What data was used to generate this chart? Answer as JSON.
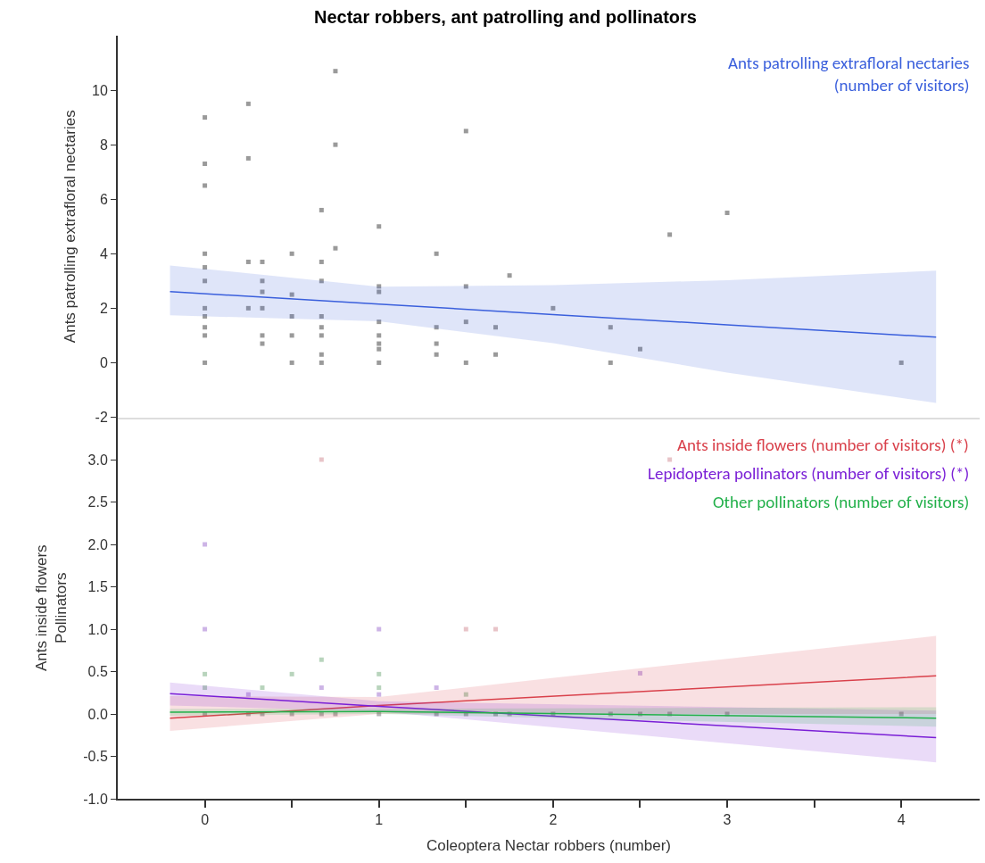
{
  "chart_data": [
    {
      "type": "scatter",
      "title": "Nectar robbers, ant patrolling and pollinators",
      "ylabel": "Ants patrolling extrafloral nectaries",
      "xlim": [
        -0.5,
        4.45
      ],
      "xticks": [
        0,
        1,
        2,
        3,
        4
      ],
      "ylim": [
        -2,
        12
      ],
      "yticks": [
        -2,
        0,
        2,
        4,
        6,
        8,
        10
      ],
      "tick_labels": "y",
      "grid": false,
      "legend": false,
      "series": [
        {
          "marker": "square",
          "color": "#9a9a9a",
          "x": [
            0,
            0,
            0,
            0,
            0,
            0,
            0,
            0,
            0,
            0,
            0,
            0.25,
            0.25,
            0.25,
            0.25,
            0.33,
            0.33,
            0.33,
            0.33,
            0.33,
            0.33,
            0.5,
            0.5,
            0.5,
            0.5,
            0.5,
            0.67,
            0.67,
            0.67,
            0.67,
            0.67,
            0.67,
            0.67,
            0.67,
            0.75,
            0.75,
            0.75,
            1,
            1,
            1,
            1,
            1,
            1,
            1,
            1,
            1.33,
            1.33,
            1.33,
            1.33,
            1.5,
            1.5,
            1.5,
            1.5,
            1.67,
            1.67,
            1.75,
            2,
            2.33,
            2.33,
            2.5,
            2.67,
            3,
            4
          ],
          "values": [
            9,
            7.3,
            6.5,
            4,
            3.5,
            3,
            2,
            1.7,
            1.3,
            1,
            0,
            9.5,
            7.5,
            3.7,
            2,
            3.7,
            3,
            2.6,
            2,
            1,
            0.7,
            4,
            2.5,
            1.7,
            1,
            0,
            5.6,
            3.7,
            3,
            1.7,
            1.3,
            1,
            0.3,
            0,
            10.7,
            8,
            4.2,
            5,
            2.8,
            2.6,
            1.5,
            1,
            0.7,
            0.5,
            0,
            4,
            1.3,
            0.7,
            0.3,
            8.5,
            2.8,
            1.5,
            0,
            1.3,
            0.3,
            3.2,
            2,
            1.3,
            0,
            0.5,
            4.7,
            5.5,
            0
          ]
        },
        {
          "type": "line",
          "name": "Ants patrolling extrafloral nectaries\n(number of visitors)",
          "color": "#3a5fdc",
          "marker": "none",
          "line_style": "solid",
          "x": [
            -0.2,
            1,
            2,
            3,
            4.2
          ],
          "values": [
            2.61,
            2.15,
            1.77,
            1.39,
            0.94
          ],
          "upper": [
            3.57,
            2.79,
            2.85,
            3.03,
            3.38
          ],
          "lower": [
            1.74,
            1.52,
            0.72,
            -0.36,
            -1.48
          ]
        }
      ]
    },
    {
      "type": "scatter",
      "xlabel": "Coleoptera Nectar robbers (number)",
      "ylabel": "Ants inside flowers\nPollinators",
      "xlim": [
        -0.5,
        4.45
      ],
      "xticks": [
        0,
        {
          "value": 0.5,
          "label": null
        },
        1,
        {
          "value": 1.5,
          "label": null
        },
        2,
        {
          "value": 2.5,
          "label": null
        },
        3,
        {
          "value": 3.5,
          "label": null
        },
        4
      ],
      "ylim": [
        -1,
        3.5
      ],
      "yticks": [
        {
          "value": -1,
          "label": "-1.0"
        },
        -0.5,
        {
          "value": 0,
          "label": "0.0"
        },
        0.5,
        {
          "value": 1,
          "label": "1.0"
        },
        1.5,
        {
          "value": 2,
          "label": "2.0"
        },
        2.5,
        {
          "value": 3,
          "label": "3.0"
        }
      ],
      "grid": false,
      "legend": false,
      "series": [
        {
          "marker": "square",
          "color": "#e8c4c8",
          "x": [
            0.67,
            2.67,
            1.5,
            1.67
          ],
          "values": [
            3,
            3,
            1,
            1
          ]
        },
        {
          "marker": "square",
          "color": "#cdb4e6",
          "x": [
            0,
            0,
            1,
            0.67,
            1.33,
            0.25,
            1,
            2.5
          ],
          "values": [
            2,
            1,
            1,
            0.31,
            0.31,
            0.23,
            0.23,
            0.48
          ]
        },
        {
          "marker": "square",
          "color": "#b8d4bc",
          "x": [
            0.67,
            0,
            0.5,
            1,
            0.33,
            1,
            1.5,
            0
          ],
          "values": [
            0.64,
            0.47,
            0.47,
            0.47,
            0.31,
            0.31,
            0.23,
            0.31
          ]
        },
        {
          "marker": "square",
          "color": "#b4b4b4",
          "x": [
            0,
            0.25,
            0.33,
            0.5,
            0.67,
            0.75,
            1,
            1.33,
            1.5,
            1.67,
            1.75,
            2,
            2.33,
            2.5,
            2.67,
            3,
            4
          ],
          "values": [
            0,
            0,
            0,
            0,
            0,
            0,
            0,
            0,
            0,
            0,
            0,
            0,
            0,
            0,
            0,
            0,
            0
          ]
        },
        {
          "type": "line",
          "name": "Ants inside flowers (number of visitors) (*)",
          "color": "#d9414b",
          "marker": "none",
          "line_style": "solid",
          "x": [
            -0.2,
            1,
            4.2
          ],
          "values": [
            -0.05,
            0.1,
            0.45
          ],
          "upper": [
            0.21,
            0.2,
            0.92
          ],
          "lower": [
            -0.2,
            0.0,
            0.0
          ]
        },
        {
          "type": "line",
          "name": "Lepidoptera pollinators (number of visitors) (*)",
          "color": "#7a1fd6",
          "marker": "none",
          "line_style": "solid",
          "x": [
            -0.2,
            1,
            4.2
          ],
          "values": [
            0.24,
            0.09,
            -0.28
          ],
          "upper": [
            0.37,
            0.15,
            0.04
          ],
          "lower": [
            0.1,
            0.03,
            -0.57
          ]
        },
        {
          "type": "line",
          "name": "Other pollinators (number of visitors)",
          "color": "#22b04a",
          "marker": "none",
          "line_style": "solid",
          "x": [
            -0.2,
            1,
            4.2
          ],
          "values": [
            0.02,
            0.03,
            -0.05
          ],
          "upper": [
            0.06,
            0.06,
            0.08
          ],
          "lower": [
            -0.02,
            0.0,
            -0.15
          ]
        }
      ]
    }
  ]
}
